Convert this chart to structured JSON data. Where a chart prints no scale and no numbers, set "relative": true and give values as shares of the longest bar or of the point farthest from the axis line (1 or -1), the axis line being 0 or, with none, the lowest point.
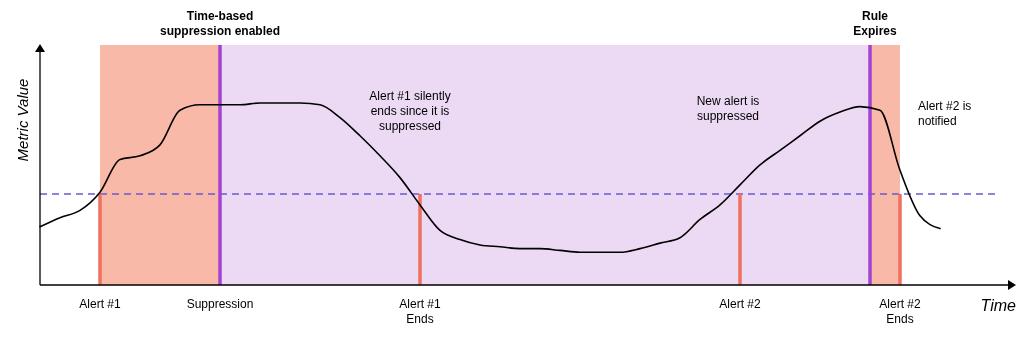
{
  "chart_data": {
    "type": "line",
    "relative": true,
    "xlabel": "Time",
    "ylabel": "Metric Value",
    "categories": [
      null,
      null,
      null,
      "Alert #1",
      null,
      null,
      null,
      null,
      null,
      "Suppression",
      null,
      null,
      null,
      null,
      null,
      null,
      null,
      null,
      null,
      "Alert #1\nEnds",
      null,
      null,
      null,
      null,
      null,
      null,
      null,
      null,
      null,
      null,
      null,
      null,
      null,
      null,
      null,
      "Alert #2",
      null,
      null,
      null,
      null,
      null,
      null,
      null,
      "Alert #2\nEnds",
      null,
      null
    ],
    "series": [
      {
        "color": "#000000",
        "values": [
          0.32,
          0.37,
          0.41,
          0.51,
          0.69,
          0.71,
          0.77,
          0.96,
          0.99,
          0.99,
          0.99,
          1.0,
          1.0,
          1.0,
          0.99,
          0.92,
          0.82,
          0.71,
          0.59,
          0.44,
          0.3,
          0.25,
          0.22,
          0.21,
          0.2,
          0.2,
          0.19,
          0.18,
          0.18,
          0.18,
          0.2,
          0.23,
          0.26,
          0.36,
          0.44,
          0.55,
          0.66,
          0.74,
          0.82,
          0.9,
          0.95,
          0.98,
          0.96,
          0.63,
          0.38,
          0.31
        ]
      }
    ],
    "ref_lines": [
      {
        "axis": "y",
        "value": 0.5,
        "color": "#6a5acd",
        "line_style": "dashed"
      }
    ],
    "annotations": [
      "Time-based\nsuppression enabled",
      "Rule\nExpires",
      "Alert #1 silently\nends since it is\nsuppressed",
      "New alert is\nsuppressed",
      "Alert #2 is\nnotified"
    ]
  }
}
